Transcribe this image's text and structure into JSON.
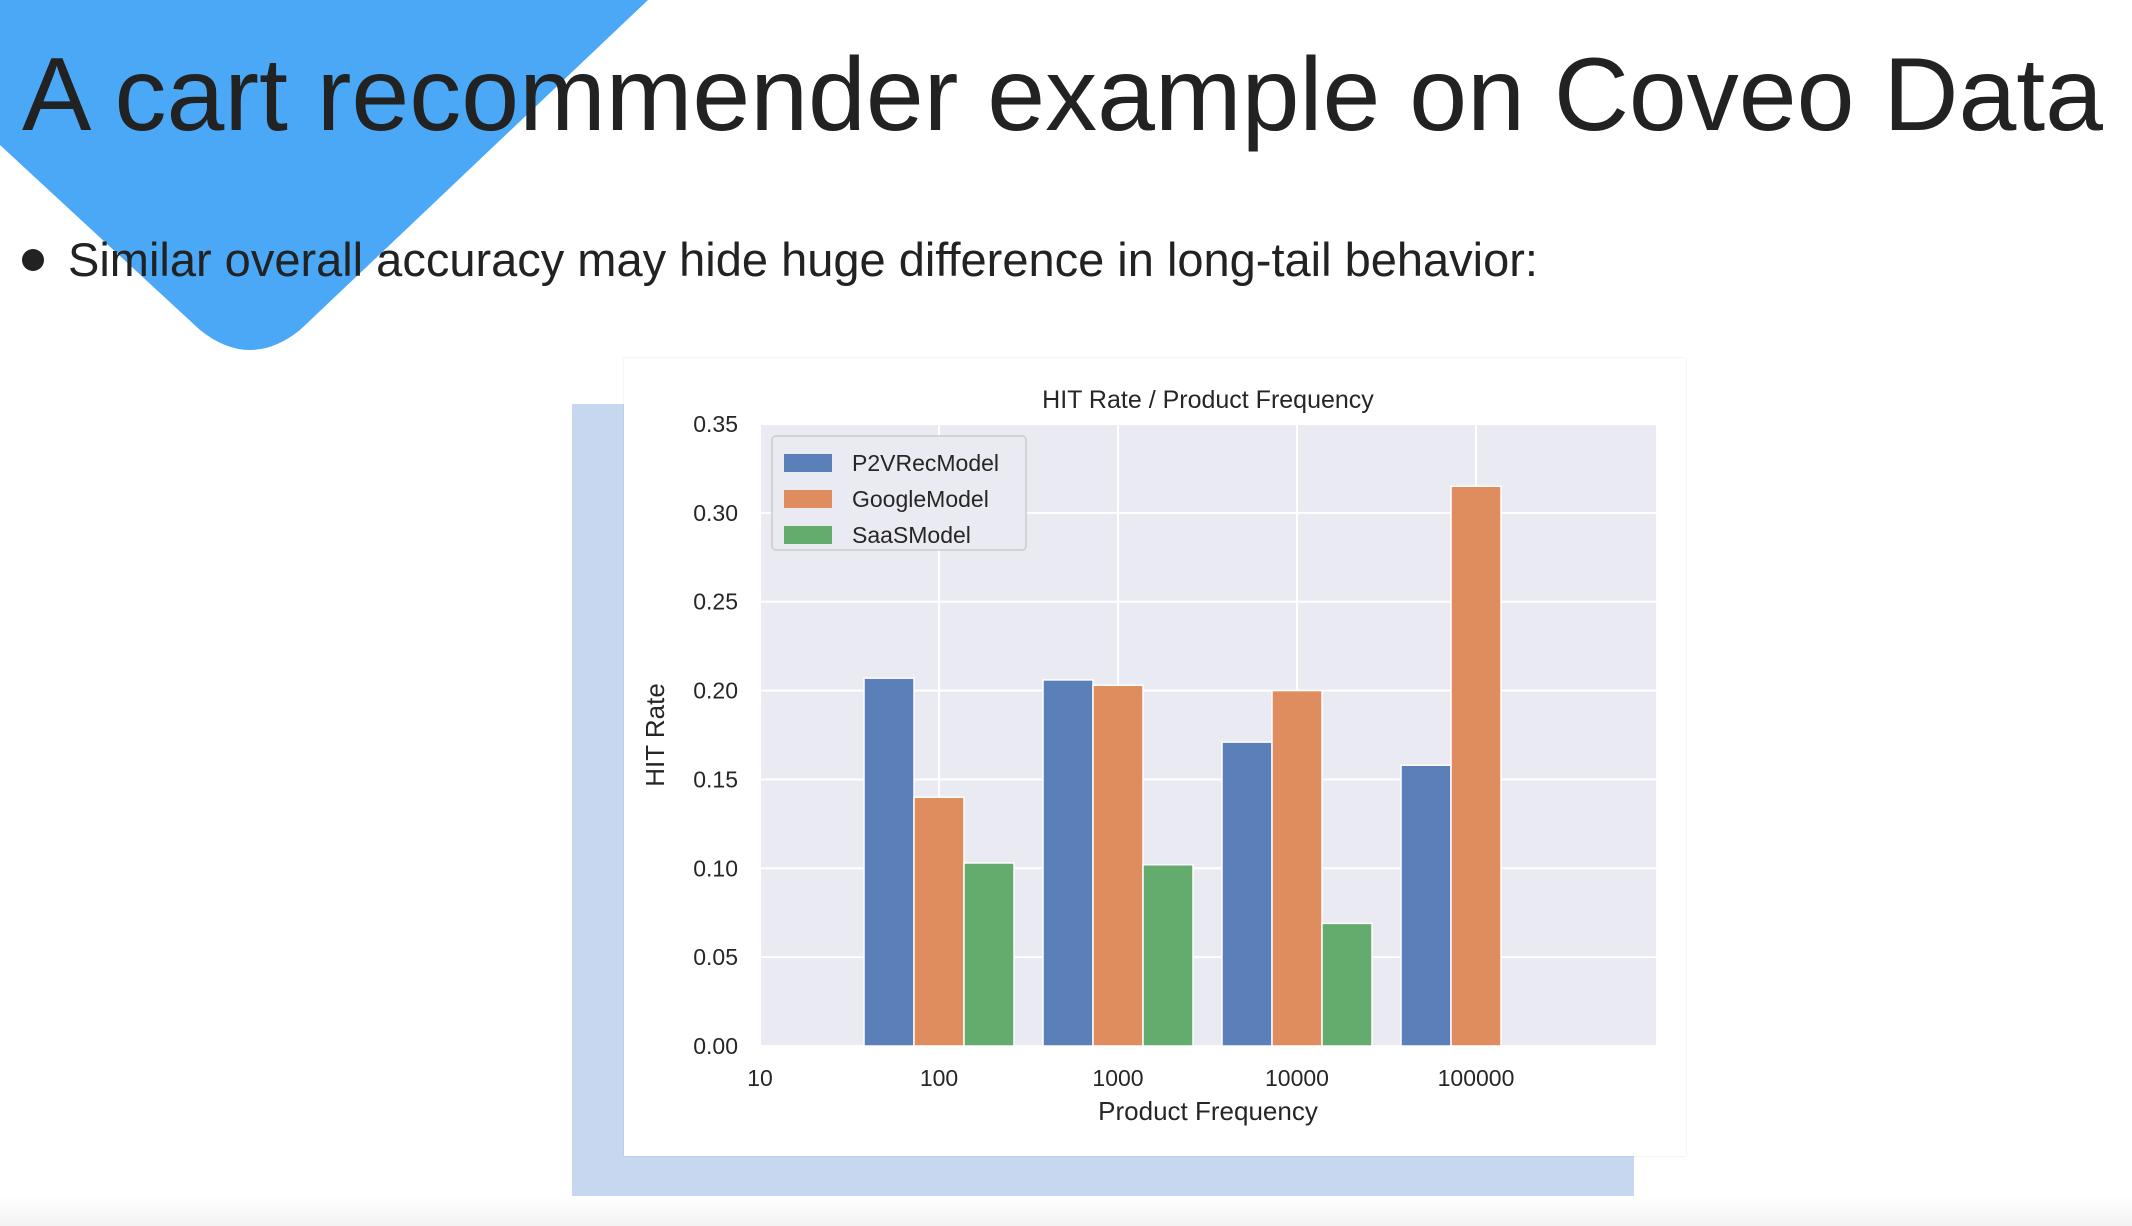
{
  "slide": {
    "title": "A cart recommender example on Coveo Data",
    "bullet": "Similar overall accuracy may hide huge difference in long-tail behavior:",
    "accent_color": "#4aa8f7",
    "shadow_color": "#c7d7f0"
  },
  "chart_data": {
    "type": "bar",
    "title": "HIT Rate / Product Frequency",
    "xlabel": "Product Frequency",
    "ylabel": "HIT Rate",
    "x_ticks": [
      "10",
      "100",
      "1000",
      "10000",
      "100000"
    ],
    "categories": [
      "100",
      "1000",
      "10000",
      "100000"
    ],
    "ylim": [
      0,
      0.35
    ],
    "y_ticks": [
      "0.00",
      "0.05",
      "0.10",
      "0.15",
      "0.20",
      "0.25",
      "0.30",
      "0.35"
    ],
    "grid": true,
    "legend_position": "top-left",
    "series": [
      {
        "name": "P2VRecModel",
        "color": "#5b7fb9",
        "values": [
          0.207,
          0.206,
          0.171,
          0.158
        ]
      },
      {
        "name": "GoogleModel",
        "color": "#df8c5e",
        "values": [
          0.14,
          0.203,
          0.2,
          0.315
        ]
      },
      {
        "name": "SaaSModel",
        "color": "#63ac6e",
        "values": [
          0.103,
          0.102,
          0.069,
          0
        ]
      }
    ]
  }
}
